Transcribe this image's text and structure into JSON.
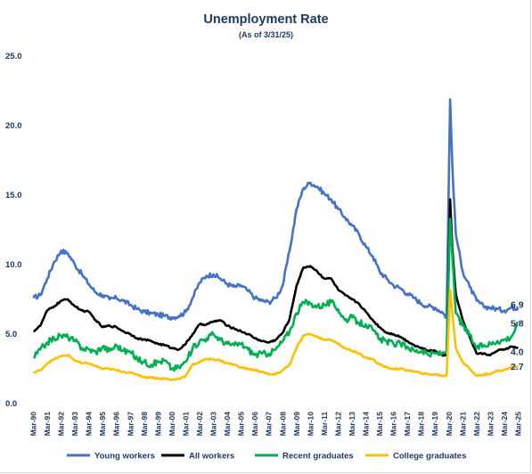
{
  "chart_data": {
    "type": "line",
    "title": "Unemployment Rate",
    "subtitle": "(As of 3/31/25)",
    "ylim": [
      0,
      25
    ],
    "yticks": [
      "0.0",
      "5.0",
      "10.0",
      "15.0",
      "20.0",
      "25.0"
    ],
    "xlim": [
      "Mar-90",
      "Mar-25"
    ],
    "x_tick_labels": [
      "Mar-90",
      "Mar-91",
      "Mar-92",
      "Mar-93",
      "Mar-94",
      "Mar-95",
      "Mar-96",
      "Mar-97",
      "Mar-98",
      "Mar-99",
      "Mar-00",
      "Mar-01",
      "Mar-02",
      "Mar-03",
      "Mar-04",
      "Mar-05",
      "Mar-06",
      "Mar-07",
      "Mar-08",
      "Mar-09",
      "Mar-10",
      "Mar-11",
      "Mar-12",
      "Mar-13",
      "Mar-14",
      "Mar-15",
      "Mar-16",
      "Mar-17",
      "Mar-18",
      "Mar-19",
      "Mar-20",
      "Mar-21",
      "Mar-22",
      "Mar-23",
      "Mar-24",
      "Mar-25"
    ],
    "grid": false,
    "legend": "bottom",
    "series": [
      {
        "name": "Young workers",
        "color": "#4472c4",
        "end_label": "6.9",
        "x": [
          "1990-03",
          "1990-09",
          "1991-03",
          "1991-09",
          "1992-03",
          "1992-09",
          "1993-03",
          "1993-09",
          "1994-03",
          "1994-09",
          "1995-03",
          "1995-09",
          "1996-03",
          "1996-09",
          "1997-03",
          "1997-09",
          "1998-03",
          "1998-09",
          "1999-03",
          "1999-09",
          "2000-03",
          "2000-09",
          "2001-03",
          "2001-09",
          "2002-03",
          "2002-09",
          "2003-03",
          "2003-09",
          "2004-03",
          "2004-09",
          "2005-03",
          "2005-09",
          "2006-03",
          "2006-09",
          "2007-03",
          "2007-09",
          "2008-03",
          "2008-09",
          "2009-03",
          "2009-09",
          "2010-03",
          "2010-09",
          "2011-03",
          "2011-09",
          "2012-03",
          "2012-09",
          "2013-03",
          "2013-09",
          "2014-03",
          "2014-09",
          "2015-03",
          "2015-09",
          "2016-03",
          "2016-09",
          "2017-03",
          "2017-09",
          "2018-03",
          "2018-09",
          "2019-03",
          "2019-09",
          "2020-01",
          "2020-04",
          "2020-06",
          "2020-09",
          "2021-03",
          "2021-09",
          "2022-03",
          "2022-09",
          "2023-03",
          "2023-09",
          "2024-03",
          "2024-09",
          "2025-03"
        ],
        "values": [
          7.6,
          7.8,
          9.0,
          10.2,
          11.0,
          10.8,
          10.0,
          9.3,
          8.6,
          8.0,
          7.8,
          7.5,
          7.6,
          7.4,
          7.1,
          6.8,
          6.6,
          6.5,
          6.4,
          6.3,
          6.2,
          6.3,
          6.6,
          7.6,
          8.7,
          9.2,
          9.3,
          9.0,
          8.6,
          8.4,
          8.5,
          8.1,
          7.6,
          7.4,
          7.3,
          7.6,
          8.5,
          11.0,
          14.0,
          15.5,
          15.9,
          15.6,
          15.1,
          14.7,
          14.0,
          13.4,
          12.8,
          12.2,
          11.3,
          10.6,
          9.5,
          9.0,
          8.5,
          8.3,
          7.9,
          7.6,
          7.2,
          7.0,
          6.9,
          6.6,
          6.2,
          21.9,
          17.0,
          12.2,
          9.5,
          8.4,
          7.4,
          7.0,
          6.9,
          6.8,
          6.7,
          6.9,
          6.9
        ]
      },
      {
        "name": "All workers",
        "color": "#000000",
        "end_label": "4.0",
        "x": [
          "1990-03",
          "1990-09",
          "1991-03",
          "1991-09",
          "1992-03",
          "1992-09",
          "1993-03",
          "1993-09",
          "1994-03",
          "1994-09",
          "1995-03",
          "1995-09",
          "1996-03",
          "1996-09",
          "1997-03",
          "1997-09",
          "1998-03",
          "1998-09",
          "1999-03",
          "1999-09",
          "2000-03",
          "2000-09",
          "2001-03",
          "2001-09",
          "2002-03",
          "2002-09",
          "2003-03",
          "2003-09",
          "2004-03",
          "2004-09",
          "2005-03",
          "2005-09",
          "2006-03",
          "2006-09",
          "2007-03",
          "2007-09",
          "2008-03",
          "2008-09",
          "2009-03",
          "2009-09",
          "2010-03",
          "2010-09",
          "2011-03",
          "2011-09",
          "2012-03",
          "2012-09",
          "2013-03",
          "2013-09",
          "2014-03",
          "2014-09",
          "2015-03",
          "2015-09",
          "2016-03",
          "2016-09",
          "2017-03",
          "2017-09",
          "2018-03",
          "2018-09",
          "2019-03",
          "2019-09",
          "2020-01",
          "2020-04",
          "2020-06",
          "2020-09",
          "2021-03",
          "2021-09",
          "2022-03",
          "2022-09",
          "2023-03",
          "2023-09",
          "2024-03",
          "2024-09",
          "2025-03"
        ],
        "values": [
          5.2,
          5.6,
          6.7,
          7.0,
          7.4,
          7.5,
          7.0,
          6.7,
          6.6,
          6.0,
          5.5,
          5.6,
          5.5,
          5.2,
          5.0,
          4.7,
          4.6,
          4.5,
          4.3,
          4.2,
          4.0,
          3.9,
          4.3,
          5.0,
          5.7,
          5.7,
          5.9,
          6.0,
          5.6,
          5.4,
          5.2,
          5.0,
          4.7,
          4.5,
          4.4,
          4.6,
          5.1,
          6.1,
          8.5,
          9.8,
          9.9,
          9.5,
          9.0,
          9.0,
          8.2,
          7.8,
          7.5,
          7.2,
          6.6,
          6.0,
          5.5,
          5.1,
          5.0,
          4.8,
          4.5,
          4.2,
          4.0,
          3.8,
          3.8,
          3.5,
          3.5,
          14.7,
          11.1,
          7.9,
          6.0,
          4.8,
          3.6,
          3.6,
          3.5,
          3.8,
          3.9,
          4.1,
          4.0
        ]
      },
      {
        "name": "Recent graduates",
        "color": "#00b050",
        "end_label": "5.8",
        "x": [
          "1990-03",
          "1990-09",
          "1991-03",
          "1991-09",
          "1992-03",
          "1992-09",
          "1993-03",
          "1993-09",
          "1994-03",
          "1994-09",
          "1995-03",
          "1995-09",
          "1996-03",
          "1996-09",
          "1997-03",
          "1997-09",
          "1998-03",
          "1998-09",
          "1999-03",
          "1999-09",
          "2000-03",
          "2000-09",
          "2001-03",
          "2001-09",
          "2002-03",
          "2002-09",
          "2003-03",
          "2003-09",
          "2004-03",
          "2004-09",
          "2005-03",
          "2005-09",
          "2006-03",
          "2006-09",
          "2007-03",
          "2007-09",
          "2008-03",
          "2008-09",
          "2009-03",
          "2009-09",
          "2010-03",
          "2010-09",
          "2011-03",
          "2011-09",
          "2012-03",
          "2012-09",
          "2013-03",
          "2013-09",
          "2014-03",
          "2014-09",
          "2015-03",
          "2015-09",
          "2016-03",
          "2016-09",
          "2017-03",
          "2017-09",
          "2018-03",
          "2018-09",
          "2019-03",
          "2019-09",
          "2020-01",
          "2020-04",
          "2020-06",
          "2020-09",
          "2021-03",
          "2021-09",
          "2022-03",
          "2022-09",
          "2023-03",
          "2023-09",
          "2024-03",
          "2024-09",
          "2025-03"
        ],
        "values": [
          3.3,
          3.9,
          4.4,
          4.7,
          4.9,
          4.8,
          4.5,
          4.0,
          3.9,
          3.7,
          4.1,
          3.8,
          4.2,
          3.8,
          3.7,
          3.2,
          3.0,
          2.8,
          3.0,
          3.1,
          2.5,
          2.6,
          3.0,
          4.0,
          4.5,
          4.7,
          5.0,
          4.6,
          4.3,
          4.2,
          4.3,
          3.9,
          3.5,
          3.6,
          3.6,
          3.9,
          4.5,
          5.2,
          6.5,
          7.3,
          7.2,
          7.0,
          7.1,
          7.3,
          6.8,
          6.0,
          6.2,
          5.8,
          5.7,
          5.3,
          4.6,
          4.5,
          4.3,
          4.3,
          4.1,
          3.8,
          3.8,
          3.5,
          3.6,
          3.6,
          3.8,
          13.3,
          10.5,
          6.5,
          5.6,
          4.9,
          4.0,
          4.2,
          4.3,
          4.5,
          4.6,
          4.8,
          5.8
        ]
      },
      {
        "name": "College graduates",
        "color": "#ffc000",
        "end_label": "2.7",
        "x": [
          "1990-03",
          "1990-09",
          "1991-03",
          "1991-09",
          "1992-03",
          "1992-09",
          "1993-03",
          "1993-09",
          "1994-03",
          "1994-09",
          "1995-03",
          "1995-09",
          "1996-03",
          "1996-09",
          "1997-03",
          "1997-09",
          "1998-03",
          "1998-09",
          "1999-03",
          "1999-09",
          "2000-03",
          "2000-09",
          "2001-03",
          "2001-09",
          "2002-03",
          "2002-09",
          "2003-03",
          "2003-09",
          "2004-03",
          "2004-09",
          "2005-03",
          "2005-09",
          "2006-03",
          "2006-09",
          "2007-03",
          "2007-09",
          "2008-03",
          "2008-09",
          "2009-03",
          "2009-09",
          "2010-03",
          "2010-09",
          "2011-03",
          "2011-09",
          "2012-03",
          "2012-09",
          "2013-03",
          "2013-09",
          "2014-03",
          "2014-09",
          "2015-03",
          "2015-09",
          "2016-03",
          "2016-09",
          "2017-03",
          "2017-09",
          "2018-03",
          "2018-09",
          "2019-03",
          "2019-09",
          "2020-01",
          "2020-04",
          "2020-06",
          "2020-09",
          "2021-03",
          "2021-09",
          "2022-03",
          "2022-09",
          "2023-03",
          "2023-09",
          "2024-03",
          "2024-09",
          "2025-03"
        ],
        "values": [
          2.2,
          2.4,
          2.9,
          3.2,
          3.4,
          3.5,
          3.1,
          2.9,
          2.9,
          2.7,
          2.5,
          2.5,
          2.4,
          2.3,
          2.2,
          2.1,
          1.9,
          1.9,
          1.8,
          1.8,
          1.7,
          1.8,
          2.0,
          2.8,
          3.0,
          3.2,
          3.2,
          3.1,
          2.9,
          2.8,
          2.6,
          2.5,
          2.4,
          2.3,
          2.1,
          2.1,
          2.4,
          2.8,
          4.0,
          4.9,
          5.0,
          4.8,
          4.6,
          4.6,
          4.3,
          4.0,
          3.8,
          3.6,
          3.3,
          3.2,
          2.8,
          2.6,
          2.5,
          2.5,
          2.4,
          2.3,
          2.2,
          2.1,
          2.1,
          2.0,
          2.0,
          8.2,
          6.5,
          4.0,
          3.0,
          2.5,
          2.0,
          2.1,
          2.1,
          2.4,
          2.4,
          2.6,
          2.7
        ]
      }
    ]
  }
}
